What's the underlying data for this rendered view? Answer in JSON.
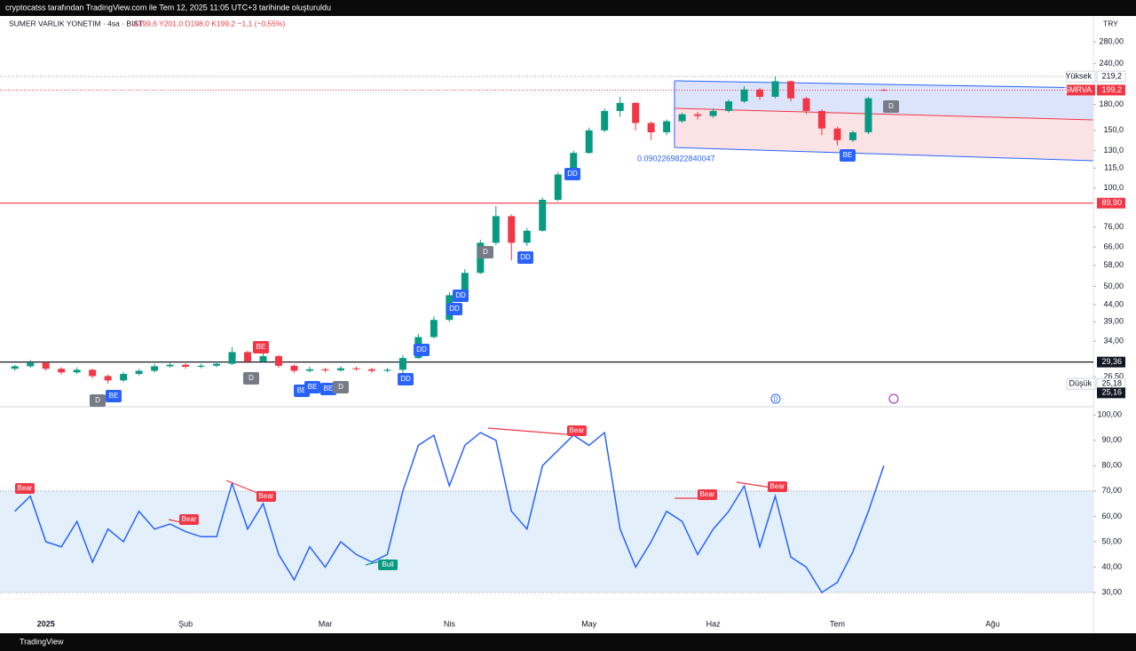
{
  "header": {
    "caption": "cryptocatss tarafından TradingView.com ile Tem 12, 2025 11:05 UTC+3 tarihinde oluşturuldu",
    "title": "SUMER VARLIK YONETIM · 4sa · BIST",
    "ohlc": "A199,6 Y201,0 D198,0 K199,2 −1,1 (−0,55%)",
    "currency": "TRY",
    "brand": "TradingView"
  },
  "chart_data": [
    {
      "type": "candlestick",
      "log_scale": true,
      "up_color": "#089981",
      "down_color": "#f23645",
      "ylim": [
        21.7,
        292.5
      ],
      "yticks": [
        {
          "value": 280,
          "label": "280,00"
        },
        {
          "value": 240,
          "label": "240,00"
        },
        {
          "value": 180,
          "label": "180,00"
        },
        {
          "value": 150,
          "label": "150,0"
        },
        {
          "value": 130,
          "label": "130,0"
        },
        {
          "value": 115,
          "label": "115,0"
        },
        {
          "value": 100,
          "label": "100,0"
        },
        {
          "value": 76,
          "label": "76,00"
        },
        {
          "value": 66,
          "label": "66,00"
        },
        {
          "value": 58,
          "label": "58,00"
        },
        {
          "value": 50,
          "label": "50,00"
        },
        {
          "value": 44,
          "label": "44,00"
        },
        {
          "value": 39,
          "label": "39,00"
        },
        {
          "value": 34,
          "label": "34,00"
        },
        {
          "value": 26.5,
          "label": "26,50"
        }
      ],
      "open": [
        28.0,
        28.5,
        29.2,
        28.0,
        27.3,
        27.8,
        26.6,
        25.8,
        27.0,
        27.6,
        28.5,
        28.8,
        28.4,
        28.6,
        29.0,
        31.5,
        29.5,
        30.6,
        28.6,
        27.6,
        27.9,
        27.7,
        28.1,
        27.9,
        27.6,
        27.8,
        30.2,
        35.0,
        39.5,
        47.0,
        55.0,
        68.0,
        82.0,
        68.0,
        74.0,
        92.0,
        110,
        128,
        150,
        172,
        182,
        158,
        148,
        160,
        168,
        166,
        172,
        184,
        200,
        190,
        212,
        188,
        172,
        152,
        140,
        148,
        199.6
      ],
      "high": [
        28.8,
        29.8,
        29.5,
        28.3,
        28.3,
        28.0,
        26.9,
        27.4,
        28.0,
        29.0,
        29.2,
        29.1,
        29.0,
        29.4,
        32.6,
        31.8,
        31.2,
        30.9,
        28.9,
        28.4,
        28.2,
        28.5,
        28.4,
        28.2,
        28.2,
        30.8,
        35.8,
        40.5,
        48.0,
        56.5,
        69.5,
        88.0,
        83.0,
        75.5,
        93.5,
        112,
        130,
        153,
        175,
        190,
        183,
        160,
        162,
        170,
        171,
        175,
        186,
        205,
        202,
        219.2,
        213,
        190,
        174,
        154,
        150,
        190,
        201.0
      ],
      "low": [
        27.6,
        28.2,
        27.6,
        26.9,
        27.0,
        26.2,
        25.2,
        25.5,
        26.7,
        27.3,
        28.2,
        28.0,
        28.1,
        28.3,
        28.8,
        29.1,
        29.2,
        28.2,
        27.2,
        27.3,
        27.3,
        27.4,
        27.6,
        27.2,
        27.3,
        26.8,
        30.0,
        34.6,
        39.0,
        46.5,
        54.5,
        67.0,
        60.0,
        66.5,
        73.5,
        91.0,
        109,
        127,
        148,
        165,
        150,
        140,
        145,
        158,
        162,
        164,
        170,
        182,
        186,
        188,
        184,
        168,
        145,
        135,
        138,
        146,
        198.0
      ],
      "close": [
        28.5,
        29.2,
        28.0,
        27.3,
        27.8,
        26.6,
        25.8,
        27.0,
        27.6,
        28.5,
        28.8,
        28.4,
        28.6,
        29.0,
        31.5,
        29.5,
        30.6,
        28.6,
        27.6,
        27.9,
        27.7,
        28.1,
        27.9,
        27.6,
        27.8,
        30.2,
        35.0,
        39.5,
        47.0,
        55.0,
        68.0,
        82.0,
        68.0,
        74.0,
        92.0,
        110,
        128,
        150,
        172,
        182,
        158,
        148,
        160,
        168,
        166,
        172,
        184,
        200,
        190,
        212,
        188,
        172,
        152,
        140,
        148,
        188,
        199.2
      ],
      "hlines": [
        {
          "value": 89.9,
          "label": "89,90",
          "color": "#f23645"
        },
        {
          "value": 29.36,
          "label": "29,36",
          "color": "#131722"
        }
      ],
      "price_tags": [
        {
          "name": "Yüksek",
          "value": 219.2,
          "label": "219,2",
          "color": "#ffffff"
        },
        {
          "name": "SMRVA",
          "value": 199.2,
          "label": "199,2",
          "color": "#f23645"
        },
        {
          "name": "Düşük",
          "value": 25.18,
          "label": "25,18",
          "color": "#ffffff"
        },
        {
          "value": 25.16,
          "label": "25,16",
          "color": "#131722"
        }
      ],
      "channel_label": "0.0902269822840047",
      "event_icons": [
        "D"
      ],
      "signals": [
        {
          "text": "D",
          "color": "#787b86"
        },
        {
          "text": "BE",
          "color": "#2962ff"
        },
        {
          "text": "BE",
          "color": "#f23645"
        },
        {
          "text": "D",
          "color": "#787b86"
        },
        {
          "text": "BE",
          "color": "#2962ff"
        },
        {
          "text": "BE",
          "color": "#2962ff"
        },
        {
          "text": "BE",
          "color": "#2962ff"
        },
        {
          "text": "D",
          "color": "#787b86"
        },
        {
          "text": "DD",
          "color": "#2962ff"
        },
        {
          "text": "DD",
          "color": "#2962ff"
        },
        {
          "text": "DD",
          "color": "#2962ff"
        },
        {
          "text": "DD",
          "color": "#2962ff"
        },
        {
          "text": "D",
          "color": "#787b86"
        },
        {
          "text": "DD",
          "color": "#2962ff"
        },
        {
          "text": "DD",
          "color": "#2962ff"
        },
        {
          "text": "BE",
          "color": "#2962ff"
        },
        {
          "text": "D",
          "color": "#787b86"
        }
      ]
    },
    {
      "type": "line",
      "color": "#2962ff",
      "band": [
        30,
        70
      ],
      "band_color": "#e3f0fb",
      "ylim": [
        15,
        102.5
      ],
      "yticks": [
        {
          "value": 100,
          "label": "100,00"
        },
        {
          "value": 90,
          "label": "90,00"
        },
        {
          "value": 80,
          "label": "80,00"
        },
        {
          "value": 70,
          "label": "70,00"
        },
        {
          "value": 60,
          "label": "60,00"
        },
        {
          "value": 50,
          "label": "50,00"
        },
        {
          "value": 40,
          "label": "40,00"
        },
        {
          "value": 30,
          "label": "30,00"
        }
      ],
      "categories": [
        null,
        null,
        "2025",
        null,
        null,
        null,
        null,
        null,
        null,
        null,
        null,
        "Şub",
        null,
        null,
        null,
        null,
        null,
        null,
        null,
        null,
        "Mar",
        null,
        null,
        null,
        null,
        null,
        null,
        null,
        "Nis",
        null,
        null,
        null,
        null,
        null,
        null,
        null,
        null,
        "May",
        null,
        null,
        null,
        null,
        null,
        null,
        null,
        "Haz",
        null,
        null,
        null,
        null,
        null,
        null,
        null,
        "Tem",
        null,
        null,
        null,
        null,
        null,
        null,
        null,
        null,
        null,
        "Ağu",
        null,
        null,
        null,
        null,
        null,
        null
      ],
      "values": [
        62,
        68,
        50,
        48,
        58,
        42,
        55,
        50,
        62,
        55,
        57,
        54,
        52,
        52,
        73,
        55,
        65,
        45,
        35,
        48,
        40,
        50,
        45,
        42,
        45,
        70,
        88,
        92,
        72,
        88,
        93,
        90,
        62,
        55,
        80,
        86,
        92,
        88,
        93,
        55,
        40,
        50,
        62,
        58,
        45,
        55,
        62,
        72,
        48,
        68,
        44,
        40,
        30,
        34,
        46,
        62,
        80,
        null,
        null,
        null,
        null,
        null,
        null,
        null,
        null,
        null,
        null,
        null,
        null,
        null
      ],
      "annotations": [
        "Bear",
        "Bear",
        "Bear",
        "Bear",
        "Bear",
        "Bear",
        "Bull"
      ]
    }
  ]
}
